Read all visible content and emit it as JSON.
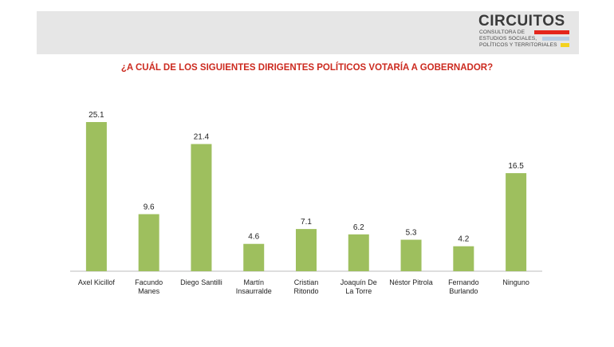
{
  "logo": {
    "name": "CIRCUITOS",
    "line1": "CONSULTORA DE",
    "line2": "ESTUDIOS SOCIALES,",
    "line3": "POLÍTICOS Y TERRITORIALES",
    "bar_colors": [
      "#e4261c",
      "#b9cde3",
      "#f4d21e"
    ]
  },
  "colors": {
    "bar": "#9ebf5e",
    "axis": "#bdbdbd",
    "title": "#cc2a1f"
  },
  "chart_data": {
    "type": "bar",
    "title": "¿A CUÁL DE LOS SIGUIENTES DIRIGENTES POLÍTICOS VOTARÍA A GOBERNADOR?",
    "categories": [
      [
        "Axel Kicillof"
      ],
      [
        "Facundo",
        "Manes"
      ],
      [
        "Diego Santilli"
      ],
      [
        "Martín",
        "Insaurralde"
      ],
      [
        "Cristian",
        "Ritondo"
      ],
      [
        "Joaquín De",
        "La Torre"
      ],
      [
        "Néstor Pitrola"
      ],
      [
        "Fernando",
        "Burlando"
      ],
      [
        "Ninguno"
      ]
    ],
    "values": [
      25.1,
      9.6,
      21.4,
      4.6,
      7.1,
      6.2,
      5.3,
      4.2,
      16.5
    ],
    "value_labels": [
      "25.1",
      "9.6",
      "21.4",
      "4.6",
      "7.1",
      "6.2",
      "5.3",
      "4.2",
      "16.5"
    ],
    "xlabel": "",
    "ylabel": "",
    "ylim": [
      0,
      25.1
    ],
    "grid": false,
    "legend": "none"
  }
}
